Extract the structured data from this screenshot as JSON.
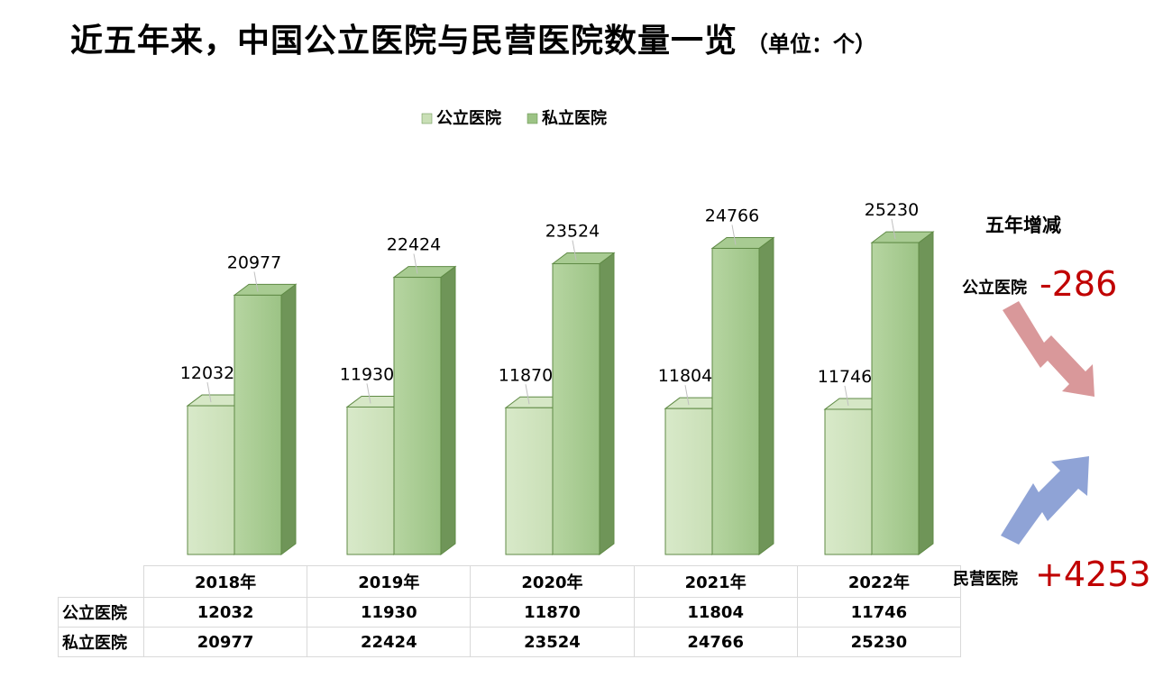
{
  "title": "近五年来，中国公立医院与民营医院数量一览",
  "unit": "（单位：个）",
  "colors": {
    "public_front": "#c9dfb6",
    "private_front": "#9cc385",
    "bar_edge": "#5f8a45",
    "arrow_down": "#d9989a",
    "arrow_up": "#8fa3d6",
    "highlight_text": "#c00000"
  },
  "chart_data": {
    "type": "bar",
    "style": "3d-clustered-column",
    "categories": [
      "2018年",
      "2019年",
      "2020年",
      "2021年",
      "2022年"
    ],
    "series": [
      {
        "name": "公立医院",
        "values": [
          12032,
          11930,
          11870,
          11804,
          11746
        ]
      },
      {
        "name": "私立医院",
        "values": [
          20977,
          22424,
          23524,
          24766,
          25230
        ]
      }
    ],
    "ylim": [
      0,
      30000
    ],
    "legend_position": "top",
    "grid": false,
    "data_table": true
  },
  "table": {
    "rows": [
      {
        "label": "公立医院",
        "values": [
          "12032",
          "11930",
          "11870",
          "11804",
          "11746"
        ]
      },
      {
        "label": "私立医院",
        "values": [
          "20977",
          "22424",
          "23524",
          "24766",
          "25230"
        ]
      }
    ]
  },
  "side_panel": {
    "title": "五年增减",
    "public_label": "公立医院",
    "public_change": "-286",
    "private_label": "民营医院",
    "private_change": "+4253"
  }
}
